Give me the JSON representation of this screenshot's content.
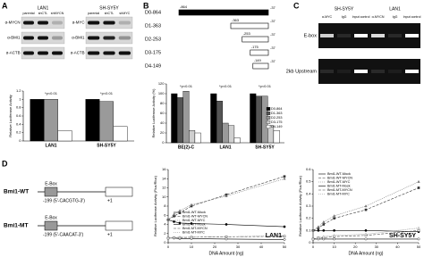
{
  "figure": {
    "panel_labels": [
      "A",
      "B",
      "C",
      "D"
    ],
    "a_blots": [
      {
        "cell": "LAN1",
        "lanes": [
          "parental",
          "shCTL",
          "shMYCN"
        ],
        "antibodies": [
          "α-MYCN",
          "α-BMI1",
          "α-ACTB"
        ]
      },
      {
        "cell": "SH-SY5Y",
        "lanes": [
          "parental",
          "shCTL",
          "shMYC"
        ],
        "antibodies": [
          "α-MYC",
          "α-BMI1",
          "α-ACTB"
        ]
      }
    ],
    "b_constructs": [
      {
        "name": "D0-864",
        "start": "-864",
        "end": "-37"
      },
      {
        "name": "D1-363",
        "start": "-363",
        "end": "-37"
      },
      {
        "name": "D2-253",
        "start": "-253",
        "end": "-37"
      },
      {
        "name": "D3-175",
        "start": "-175",
        "end": "-37"
      },
      {
        "name": "D4-149",
        "start": "-149",
        "end": "-37"
      }
    ],
    "c_chip": {
      "groups": [
        {
          "cell": "SH-SY5Y",
          "lanes": [
            "α-MYC",
            "IgG",
            "Input control"
          ]
        },
        {
          "cell": "LAN1",
          "lanes": [
            "α-MYCN",
            "IgG",
            "Input control"
          ]
        }
      ],
      "rows": [
        "E-box",
        "2kb Upstream"
      ]
    },
    "d_constructs": [
      {
        "name": "Bmi1-WT",
        "box": "E-Box",
        "site": "-199 (5'-CACGTG-3')",
        "tss": "+1"
      },
      {
        "name": "Bmi1-MT",
        "box": "E-Box",
        "site": "-199 (5'-CAACAT-3')",
        "tss": "+1"
      }
    ]
  },
  "chart_data": [
    {
      "type": "bar",
      "y_label": "Relative Luciferase Activity",
      "categories": [
        "LAN1",
        "SH-SY5Y"
      ],
      "series": [
        {
          "color": "#000000",
          "values": [
            1.0,
            1.0
          ]
        },
        {
          "color": "#9a9a9a",
          "values": [
            1.0,
            0.95
          ]
        },
        {
          "color": "#ffffff",
          "values": [
            0.25,
            0.35
          ]
        }
      ],
      "ylim": [
        0,
        1.2
      ],
      "yticks": [
        0,
        0.2,
        0.4,
        0.6,
        0.8,
        1,
        1.2
      ],
      "annotations": [
        "*p<0.01",
        "*p<0.01"
      ]
    },
    {
      "type": "bar",
      "y_label": "Relative Luciferase Activity (%)",
      "categories": [
        "BE(2)-C",
        "LAN1",
        "SH-SY5Y"
      ],
      "series": [
        {
          "name": "D0-864",
          "color": "#000000",
          "values": [
            100,
            100,
            100
          ]
        },
        {
          "name": "D1-363",
          "color": "#555555",
          "values": [
            92,
            85,
            95
          ]
        },
        {
          "name": "D2-253",
          "color": "#9a9a9a",
          "values": [
            105,
            40,
            95
          ]
        },
        {
          "name": "D3-175",
          "color": "#cfcfcf",
          "values": [
            25,
            35,
            35
          ]
        },
        {
          "name": "D4-149",
          "color": "#ffffff",
          "values": [
            20,
            10,
            25
          ]
        }
      ],
      "ylim": [
        0,
        120
      ],
      "yticks": [
        0,
        20,
        40,
        60,
        80,
        100,
        120
      ],
      "legend": "right",
      "annotations": [
        "*p<0.01",
        "*p<0.01",
        "*p<0.01"
      ]
    },
    {
      "type": "line",
      "label": "LAN1",
      "x_label": "DNA Amount (ng)",
      "y_label": "Relative Luciferase Activity (Fluc/Rluc)",
      "x": [
        0,
        2.5,
        5,
        10,
        25,
        50
      ],
      "xlim": [
        0,
        50
      ],
      "xticks": [
        0,
        10,
        20,
        30,
        40,
        50
      ],
      "ylim": [
        0,
        16
      ],
      "yticks": [
        0,
        2,
        4,
        6,
        8,
        10,
        12,
        14,
        16
      ],
      "legend": "lower left",
      "series": [
        {
          "name": "Bmi1-WT-Mock",
          "color": "#000000",
          "values": [
            5,
            4.6,
            4.3,
            4.2,
            4.0,
            3.5
          ]
        },
        {
          "name": "Bmi1-WT-MYCN",
          "color": "#333333",
          "values": [
            5,
            5.8,
            6.5,
            8,
            10.5,
            14.5
          ]
        },
        {
          "name": "Bmi1-WT-MYC",
          "color": "#777777",
          "values": [
            5,
            6.2,
            7,
            8.3,
            10.2,
            14
          ]
        },
        {
          "name": "Bmi1-MT-Mock",
          "color": "#000000",
          "values": [
            1,
            1,
            0.9,
            0.9,
            0.8,
            0.7
          ]
        },
        {
          "name": "Bmi1-MT-MYCN",
          "color": "#444444",
          "values": [
            1,
            1.1,
            1.1,
            1.2,
            1.3,
            1.4
          ]
        },
        {
          "name": "Bmi1-MT-MYC",
          "color": "#888888",
          "values": [
            1,
            1.1,
            1.2,
            1.2,
            1.3,
            1.5
          ]
        }
      ]
    },
    {
      "type": "line",
      "label": "SH-SY5Y",
      "x_label": "DNA Amount (ng)",
      "y_label": "Relative Luciferase Activity (Fluc/Rluc)",
      "x": [
        0,
        2.5,
        5,
        10,
        25,
        50
      ],
      "xlim": [
        0,
        50
      ],
      "xticks": [
        0,
        10,
        20,
        30,
        40,
        50
      ],
      "ylim": [
        0,
        0.6
      ],
      "yticks": [
        0,
        0.1,
        0.2,
        0.3,
        0.4,
        0.5,
        0.6
      ],
      "legend": "upper left",
      "series": [
        {
          "name": "Bmi1-WT-Mock",
          "color": "#000000",
          "values": [
            0.1,
            0.1,
            0.1,
            0.1,
            0.1,
            0.09
          ]
        },
        {
          "name": "Bmi1-WT-MYCN",
          "color": "#333333",
          "values": [
            0.1,
            0.12,
            0.15,
            0.2,
            0.27,
            0.45
          ]
        },
        {
          "name": "Bmi1-WT-MYC",
          "color": "#777777",
          "values": [
            0.1,
            0.13,
            0.17,
            0.22,
            0.3,
            0.5
          ]
        },
        {
          "name": "Bmi1-MT-Mock",
          "color": "#000000",
          "values": [
            0.03,
            0.03,
            0.03,
            0.03,
            0.03,
            0.03
          ]
        },
        {
          "name": "Bmi1-MT-MYCN",
          "color": "#444444",
          "values": [
            0.03,
            0.04,
            0.04,
            0.05,
            0.06,
            0.1
          ]
        },
        {
          "name": "Bmi1-MT-MYC",
          "color": "#888888",
          "values": [
            0.03,
            0.04,
            0.05,
            0.06,
            0.07,
            0.12
          ]
        }
      ]
    }
  ]
}
